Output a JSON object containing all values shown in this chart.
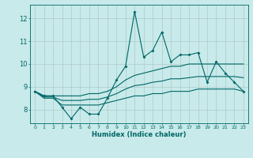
{
  "x": [
    0,
    1,
    2,
    3,
    4,
    5,
    6,
    7,
    8,
    9,
    10,
    11,
    12,
    13,
    14,
    15,
    16,
    17,
    18,
    19,
    20,
    21,
    22,
    23
  ],
  "line_main": [
    8.8,
    8.6,
    8.6,
    8.1,
    7.6,
    8.1,
    7.8,
    7.8,
    8.5,
    9.3,
    9.9,
    12.3,
    10.3,
    10.6,
    11.4,
    10.1,
    10.4,
    10.4,
    10.5,
    9.2,
    10.1,
    9.6,
    9.2,
    8.8
  ],
  "line_upper": [
    8.8,
    8.6,
    8.6,
    8.6,
    8.6,
    8.6,
    8.7,
    8.7,
    8.8,
    9.0,
    9.3,
    9.5,
    9.6,
    9.7,
    9.8,
    9.9,
    9.9,
    10.0,
    10.0,
    10.0,
    10.0,
    10.0,
    10.0,
    10.0
  ],
  "line_lower": [
    8.8,
    8.5,
    8.5,
    8.2,
    8.2,
    8.2,
    8.2,
    8.2,
    8.3,
    8.4,
    8.5,
    8.6,
    8.6,
    8.7,
    8.7,
    8.8,
    8.8,
    8.8,
    8.9,
    8.9,
    8.9,
    8.9,
    8.9,
    8.8
  ],
  "line_mid": [
    8.8,
    8.55,
    8.55,
    8.4,
    8.4,
    8.4,
    8.45,
    8.45,
    8.55,
    8.7,
    8.9,
    9.05,
    9.1,
    9.2,
    9.25,
    9.35,
    9.35,
    9.4,
    9.45,
    9.45,
    9.45,
    9.45,
    9.45,
    9.4
  ],
  "color": "#006666",
  "bg_color": "#c8eaea",
  "grid_color": "#b0c8c8",
  "xlabel": "Humidex (Indice chaleur)",
  "xlim": [
    -0.5,
    23.5
  ],
  "ylim": [
    7.4,
    12.6
  ],
  "yticks": [
    8,
    9,
    10,
    11,
    12
  ],
  "xticks": [
    0,
    1,
    2,
    3,
    4,
    5,
    6,
    7,
    8,
    9,
    10,
    11,
    12,
    13,
    14,
    15,
    16,
    17,
    18,
    19,
    20,
    21,
    22,
    23
  ]
}
